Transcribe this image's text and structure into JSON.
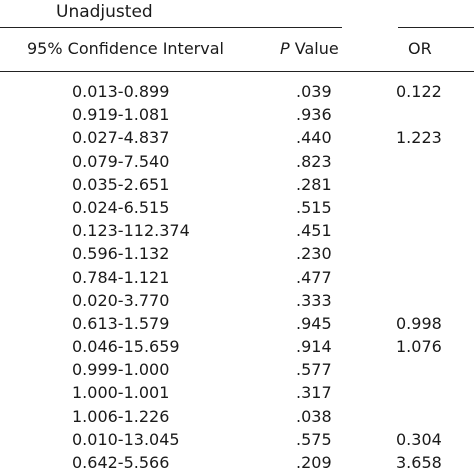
{
  "header": {
    "group_title": "Unadjusted",
    "col_ci": "95% Confidence Interval",
    "col_p_italic": "P",
    "col_p_rest": " Value",
    "col_or": "OR"
  },
  "rows": [
    {
      "ci": "0.013-0.899",
      "p": ".039",
      "or": "0.122"
    },
    {
      "ci": "0.919-1.081",
      "p": ".936",
      "or": ""
    },
    {
      "ci": "0.027-4.837",
      "p": ".440",
      "or": "1.223"
    },
    {
      "ci": "0.079-7.540",
      "p": ".823",
      "or": ""
    },
    {
      "ci": "0.035-2.651",
      "p": ".281",
      "or": ""
    },
    {
      "ci": "0.024-6.515",
      "p": ".515",
      "or": ""
    },
    {
      "ci": "0.123-112.374",
      "p": ".451",
      "or": ""
    },
    {
      "ci": "0.596-1.132",
      "p": ".230",
      "or": ""
    },
    {
      "ci": "0.784-1.121",
      "p": ".477",
      "or": ""
    },
    {
      "ci": "0.020-3.770",
      "p": ".333",
      "or": ""
    },
    {
      "ci": "0.613-1.579",
      "p": ".945",
      "or": "0.998"
    },
    {
      "ci": "0.046-15.659",
      "p": ".914",
      "or": "1.076"
    },
    {
      "ci": "0.999-1.000",
      "p": ".577",
      "or": ""
    },
    {
      "ci": "1.000-1.001",
      "p": ".317",
      "or": ""
    },
    {
      "ci": "1.006-1.226",
      "p": ".038",
      "or": ""
    },
    {
      "ci": "0.010-13.045",
      "p": ".575",
      "or": "0.304"
    },
    {
      "ci": "0.642-5.566",
      "p": ".209",
      "or": "3.658"
    }
  ]
}
